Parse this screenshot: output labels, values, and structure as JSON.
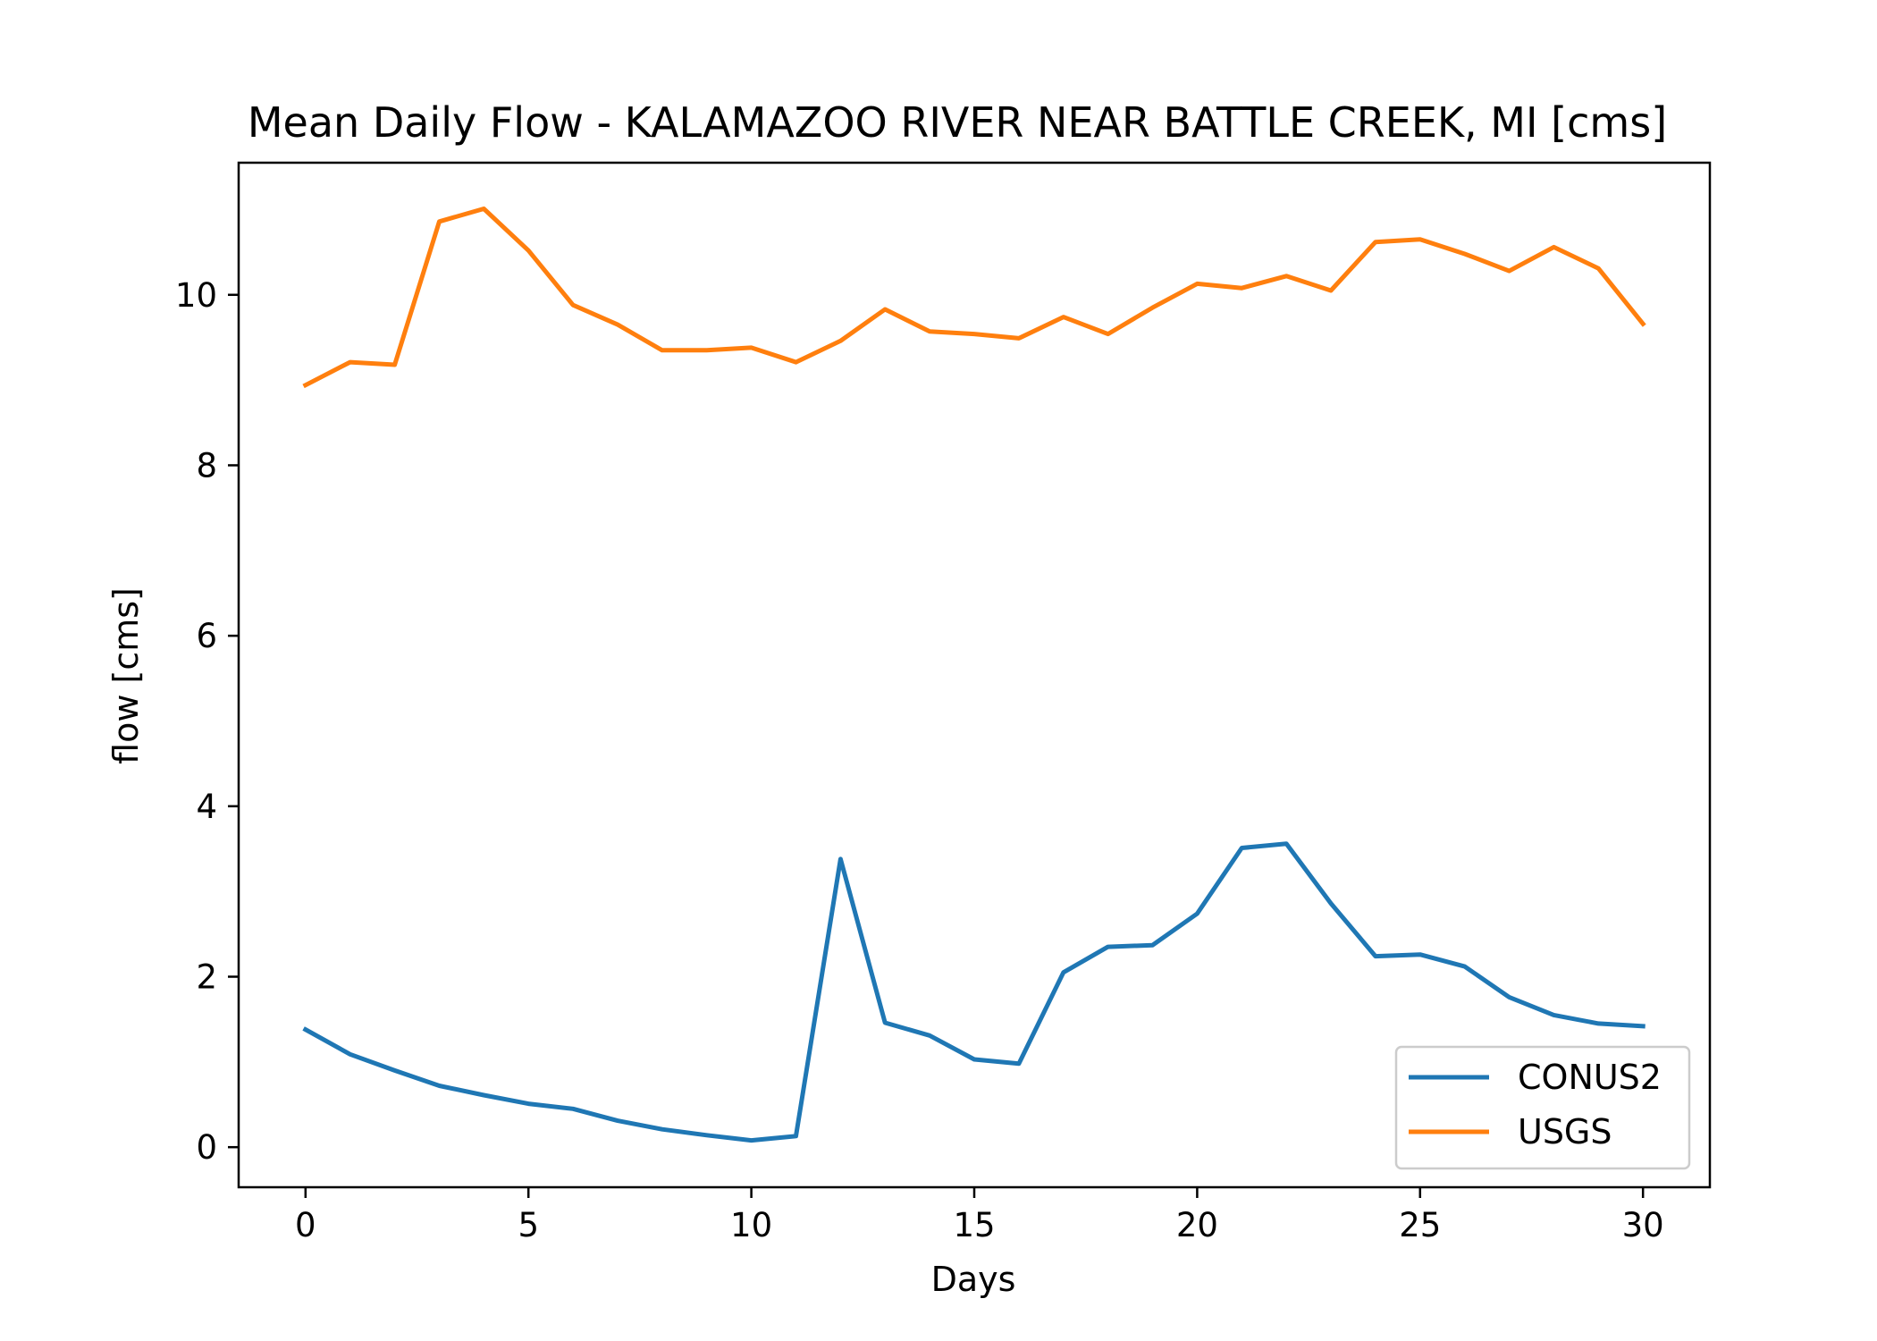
{
  "chart_data": {
    "type": "line",
    "title": "Mean Daily Flow - KALAMAZOO RIVER NEAR BATTLE CREEK, MI [cms]",
    "xlabel": "Days",
    "ylabel": "flow [cms]",
    "xlim": [
      -1.5,
      31.5
    ],
    "ylim": [
      -0.47,
      11.55
    ],
    "xticks": [
      0,
      5,
      10,
      15,
      20,
      25,
      30
    ],
    "yticks": [
      0,
      2,
      4,
      6,
      8,
      10
    ],
    "xtick_labels": [
      "0",
      "5",
      "10",
      "15",
      "20",
      "25",
      "30"
    ],
    "ytick_labels": [
      "0",
      "2",
      "4",
      "6",
      "8",
      "10"
    ],
    "grid": false,
    "legend_position": "lower-right",
    "x": [
      0,
      1,
      2,
      3,
      4,
      5,
      6,
      7,
      8,
      9,
      10,
      11,
      12,
      13,
      14,
      15,
      16,
      17,
      18,
      19,
      20,
      21,
      22,
      23,
      24,
      25,
      26,
      27,
      28,
      29,
      30
    ],
    "series": [
      {
        "name": "CONUS2",
        "color": "#1f77b4",
        "values": [
          1.38,
          1.09,
          0.9,
          0.72,
          0.61,
          0.51,
          0.45,
          0.31,
          0.21,
          0.14,
          0.08,
          0.13,
          3.38,
          1.46,
          1.31,
          1.03,
          0.98,
          2.05,
          2.35,
          2.37,
          2.74,
          3.51,
          3.56,
          2.86,
          2.24,
          2.26,
          2.12,
          1.76,
          1.55,
          1.45,
          1.42
        ]
      },
      {
        "name": "USGS",
        "color": "#ff7f0e",
        "values": [
          8.94,
          9.21,
          9.18,
          10.86,
          11.01,
          10.52,
          9.88,
          9.65,
          9.35,
          9.35,
          9.38,
          9.21,
          9.46,
          9.83,
          9.57,
          9.54,
          9.49,
          9.74,
          9.54,
          9.85,
          10.13,
          10.08,
          10.22,
          10.05,
          10.62,
          10.65,
          10.48,
          10.28,
          10.56,
          10.31,
          9.66
        ]
      }
    ]
  }
}
